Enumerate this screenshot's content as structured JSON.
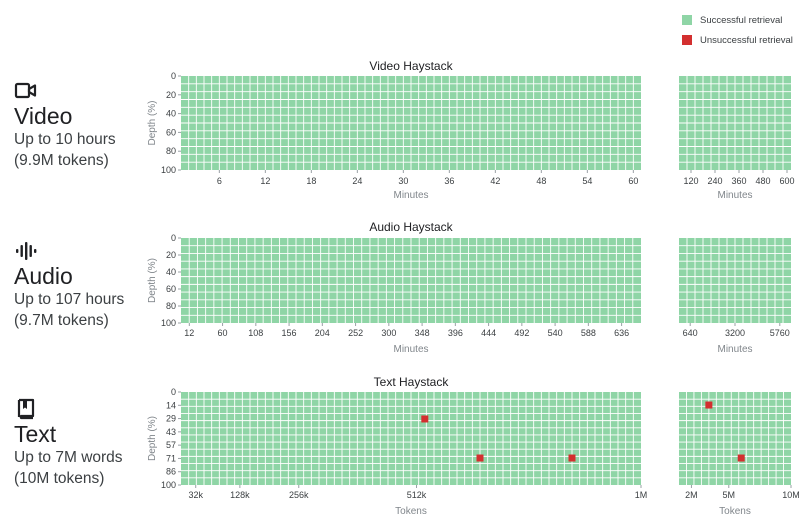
{
  "legend": {
    "items": [
      {
        "label": "Successful retrieval",
        "color": "#8fd5a6"
      },
      {
        "label": "Unsuccessful retrieval",
        "color": "#d32f2f"
      }
    ]
  },
  "modalities": [
    {
      "name": "Video",
      "sub1": "Up to 10 hours",
      "sub2": "(9.9M tokens)",
      "icon": "video-camera-icon"
    },
    {
      "name": "Audio",
      "sub1": "Up to 107 hours",
      "sub2": "(9.7M tokens)",
      "icon": "audio-waveform-icon"
    },
    {
      "name": "Text",
      "sub1": "Up to 7M words",
      "sub2": "(10M tokens)",
      "icon": "book-icon"
    }
  ],
  "chart_data": [
    {
      "type": "heatmap",
      "title": "Video Haystack",
      "xlabel": "Minutes",
      "ylabel": "Depth (%)",
      "y_ticks": [
        "0",
        "20",
        "40",
        "60",
        "80",
        "100"
      ],
      "main_panel": {
        "x_ticks": [
          "6",
          "12",
          "18",
          "24",
          "30",
          "36",
          "42",
          "48",
          "54",
          "60"
        ],
        "x_range": [
          1,
          61
        ],
        "cols": 60,
        "rows": 12
      },
      "extended_panel": {
        "x_ticks": [
          "120",
          "240",
          "360",
          "480",
          "600"
        ],
        "x_range": [
          60,
          620
        ],
        "cols": 14,
        "rows": 12
      },
      "failures": []
    },
    {
      "type": "heatmap",
      "title": "Audio Haystack",
      "xlabel": "Minutes",
      "ylabel": "Depth (%)",
      "y_ticks": [
        "0",
        "20",
        "40",
        "60",
        "80",
        "100"
      ],
      "main_panel": {
        "x_ticks": [
          "12",
          "60",
          "108",
          "156",
          "204",
          "252",
          "300",
          "348",
          "396",
          "444",
          "492",
          "540",
          "588",
          "636"
        ],
        "x_range": [
          0,
          664
        ],
        "cols": 56,
        "rows": 11
      },
      "extended_panel": {
        "x_ticks": [
          "640",
          "3200",
          "5760"
        ],
        "x_range": [
          0,
          6400
        ],
        "cols": 14,
        "rows": 11
      },
      "failures": []
    },
    {
      "type": "heatmap",
      "title": "Text Haystack",
      "xlabel": "Tokens",
      "ylabel": "Depth (%)",
      "y_ticks": [
        "0",
        "14",
        "29",
        "43",
        "57",
        "71",
        "86",
        "100"
      ],
      "main_panel": {
        "x_ticks": [
          "32k",
          "128k",
          "256k",
          "512k",
          "1M"
        ],
        "x_values": [
          32000,
          128000,
          256000,
          512000,
          1000000
        ],
        "x_range": [
          0,
          1000000
        ],
        "cols": 60,
        "rows": 13
      },
      "extended_panel": {
        "x_ticks": [
          "2M",
          "5M",
          "10M"
        ],
        "x_values": [
          2000000,
          5000000,
          10000000
        ],
        "x_range": [
          1000000,
          10000000
        ],
        "cols": 15,
        "rows": 13
      },
      "failures": [
        {
          "panel": "main",
          "tokens": 530000,
          "depth": 29
        },
        {
          "panel": "main",
          "tokens": 650000,
          "depth": 71
        },
        {
          "panel": "main",
          "tokens": 850000,
          "depth": 71
        },
        {
          "panel": "extended",
          "tokens": 3400000,
          "depth": 14
        },
        {
          "panel": "extended",
          "tokens": 6000000,
          "depth": 71
        }
      ]
    }
  ]
}
